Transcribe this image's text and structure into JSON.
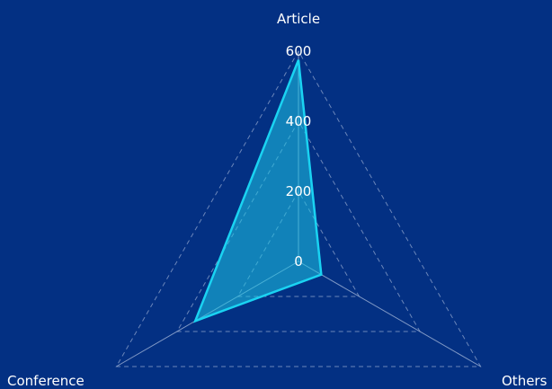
{
  "chart_data": {
    "type": "radar",
    "categories": [
      "Article",
      "Conference",
      "Others"
    ],
    "series": [
      {
        "values": [
          575,
          340,
          75
        ]
      }
    ],
    "radial_ticks": [
      "0",
      "200",
      "400",
      "600"
    ],
    "range": [
      0,
      600
    ],
    "grid": "dashed",
    "colors": {
      "background": "#033083",
      "series_line": "#1ad3f2",
      "series_fill": "#1ec7e6",
      "grid": "#8fa3cc",
      "axis": "#9fb2d6",
      "text": "#ffffff"
    }
  }
}
